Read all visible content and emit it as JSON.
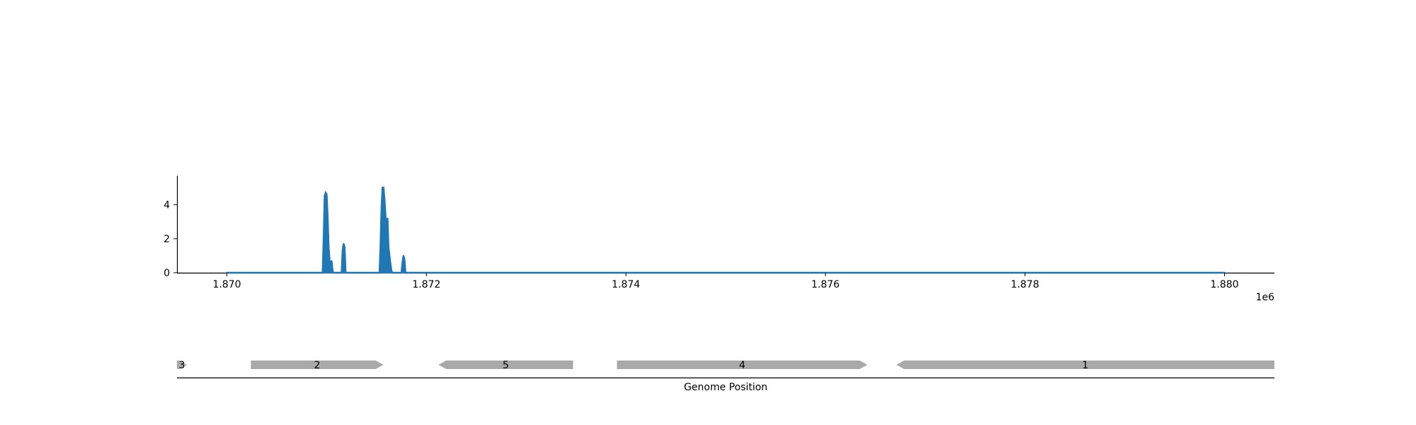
{
  "colors": {
    "coverage": "#1f77b4",
    "gene": "#a9a9a9",
    "axis": "#000000"
  },
  "chart_data": [
    {
      "type": "area",
      "xlim": [
        1869500,
        1880500
      ],
      "ylim": [
        0,
        5.7
      ],
      "xticks": [
        1870000,
        1872000,
        1874000,
        1876000,
        1878000,
        1880000
      ],
      "xtick_labels": [
        "1.870",
        "1.872",
        "1.874",
        "1.876",
        "1.878",
        "1.880"
      ],
      "yticks": [
        0,
        2,
        4
      ],
      "ytick_labels": [
        "0",
        "2",
        "4"
      ],
      "offset_label": "1e6",
      "grid": false,
      "series": [
        {
          "x": [
            1870000,
            1870960,
            1870970,
            1870980,
            1870990,
            1871000,
            1871010,
            1871020,
            1871030,
            1871040,
            1871050,
            1871060,
            1871070,
            1871080,
            1871150,
            1871160,
            1871170,
            1871180,
            1871190,
            1871530,
            1871540,
            1871550,
            1871560,
            1871570,
            1871580,
            1871590,
            1871600,
            1871610,
            1871620,
            1871630,
            1871640,
            1871650,
            1871660,
            1871750,
            1871760,
            1871770,
            1871780,
            1871790,
            1880000
          ],
          "y": [
            0,
            0,
            2.0,
            4.5,
            4.7,
            4.6,
            3.3,
            1.5,
            0.7,
            0.3,
            0.7,
            0.1,
            0,
            0,
            0,
            1.3,
            1.7,
            1.5,
            0,
            0,
            1.6,
            3.8,
            5.0,
            5.0,
            4.3,
            3.4,
            1.6,
            3.2,
            1.5,
            1.0,
            0.5,
            0.1,
            0,
            0,
            0.6,
            1.0,
            0.8,
            0,
            0
          ]
        }
      ]
    },
    {
      "type": "gene-track",
      "xlabel": "Genome Position",
      "genes": [
        {
          "label": "3",
          "start": 1869500,
          "end": 1869600,
          "strand": "+"
        },
        {
          "label": "2",
          "start": 1870240,
          "end": 1871570,
          "strand": "+"
        },
        {
          "label": "5",
          "start": 1872120,
          "end": 1873470,
          "strand": "-"
        },
        {
          "label": "4",
          "start": 1873910,
          "end": 1876420,
          "strand": "+"
        },
        {
          "label": "1",
          "start": 1876710,
          "end": 1880500,
          "strand": "-"
        }
      ]
    }
  ]
}
